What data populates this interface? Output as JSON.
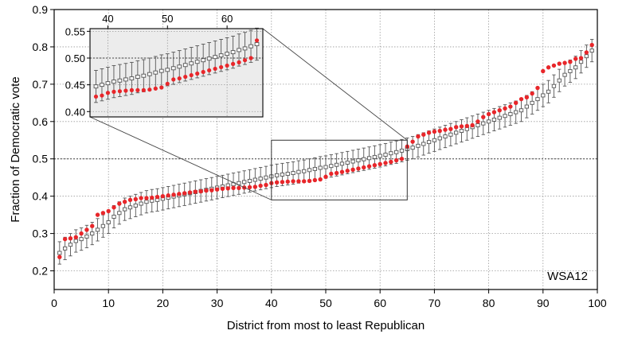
{
  "chart_data": {
    "type": "scatter",
    "xlabel": "District from most to least Republican",
    "ylabel": "Fraction of Democratic vote",
    "xlim": [
      0,
      100
    ],
    "ylim": [
      0.15,
      0.9
    ],
    "xticks": [
      0,
      10,
      20,
      30,
      40,
      50,
      60,
      70,
      80,
      90,
      100
    ],
    "yticks": [
      0.2,
      0.3,
      0.4,
      0.5,
      0.6,
      0.7,
      0.8,
      0.9
    ],
    "reference_line": 0.5,
    "grid": true,
    "annotation": "WSA12",
    "colors": {
      "points": "#e8262a",
      "boxes": "#555555",
      "inset_background": "#ececec"
    },
    "zoom_box": {
      "x": [
        40,
        65
      ],
      "y": [
        0.39,
        0.55
      ]
    },
    "inset": {
      "xlim": [
        37,
        66
      ],
      "ylim": [
        0.39,
        0.555
      ],
      "xticks": [
        40,
        50,
        60
      ],
      "yticks": [
        0.4,
        0.45,
        0.5,
        0.55
      ],
      "ytick_labels": [
        "0.40",
        "0.45",
        "0.50",
        "0.55"
      ]
    },
    "x": [
      1,
      2,
      3,
      4,
      5,
      6,
      7,
      8,
      9,
      10,
      11,
      12,
      13,
      14,
      15,
      16,
      17,
      18,
      19,
      20,
      21,
      22,
      23,
      24,
      25,
      26,
      27,
      28,
      29,
      30,
      31,
      32,
      33,
      34,
      35,
      36,
      37,
      38,
      39,
      40,
      41,
      42,
      43,
      44,
      45,
      46,
      47,
      48,
      49,
      50,
      51,
      52,
      53,
      54,
      55,
      56,
      57,
      58,
      59,
      60,
      61,
      62,
      63,
      64,
      65,
      66,
      67,
      68,
      69,
      70,
      71,
      72,
      73,
      74,
      75,
      76,
      77,
      78,
      79,
      80,
      81,
      82,
      83,
      84,
      85,
      86,
      87,
      88,
      89,
      90,
      91,
      92,
      93,
      94,
      95,
      96,
      97,
      98,
      99
    ],
    "series": [
      {
        "type": "observed",
        "values": [
          0.237,
          0.285,
          0.287,
          0.29,
          0.3,
          0.31,
          0.32,
          0.35,
          0.355,
          0.36,
          0.37,
          0.38,
          0.385,
          0.39,
          0.392,
          0.395,
          0.395,
          0.396,
          0.398,
          0.4,
          0.402,
          0.404,
          0.406,
          0.408,
          0.41,
          0.412,
          0.413,
          0.415,
          0.416,
          0.418,
          0.42,
          0.421,
          0.422,
          0.422,
          0.423,
          0.424,
          0.425,
          0.428,
          0.43,
          0.435,
          0.437,
          0.438,
          0.439,
          0.44,
          0.44,
          0.44,
          0.441,
          0.443,
          0.445,
          0.452,
          0.46,
          0.462,
          0.465,
          0.468,
          0.471,
          0.474,
          0.477,
          0.48,
          0.483,
          0.486,
          0.489,
          0.492,
          0.496,
          0.5,
          0.533,
          0.546,
          0.56,
          0.565,
          0.57,
          0.573,
          0.575,
          0.578,
          0.58,
          0.585,
          0.587,
          0.588,
          0.59,
          0.6,
          0.612,
          0.62,
          0.625,
          0.63,
          0.635,
          0.64,
          0.65,
          0.66,
          0.665,
          0.675,
          0.69,
          0.735,
          0.745,
          0.75,
          0.755,
          0.757,
          0.76,
          0.768,
          0.77,
          0.785,
          0.805
        ]
      },
      {
        "type": "ensemble-median",
        "values": [
          0.248,
          0.26,
          0.27,
          0.28,
          0.285,
          0.292,
          0.3,
          0.31,
          0.32,
          0.33,
          0.345,
          0.355,
          0.365,
          0.37,
          0.375,
          0.38,
          0.385,
          0.388,
          0.39,
          0.393,
          0.396,
          0.399,
          0.402,
          0.405,
          0.408,
          0.411,
          0.414,
          0.417,
          0.42,
          0.423,
          0.426,
          0.429,
          0.432,
          0.435,
          0.438,
          0.441,
          0.444,
          0.447,
          0.45,
          0.453,
          0.456,
          0.458,
          0.46,
          0.462,
          0.465,
          0.467,
          0.47,
          0.473,
          0.476,
          0.478,
          0.481,
          0.484,
          0.487,
          0.49,
          0.493,
          0.496,
          0.499,
          0.502,
          0.505,
          0.508,
          0.511,
          0.515,
          0.518,
          0.522,
          0.526,
          0.53,
          0.535,
          0.54,
          0.545,
          0.55,
          0.555,
          0.56,
          0.565,
          0.57,
          0.575,
          0.58,
          0.585,
          0.59,
          0.595,
          0.6,
          0.605,
          0.61,
          0.615,
          0.62,
          0.625,
          0.63,
          0.64,
          0.65,
          0.66,
          0.67,
          0.68,
          0.695,
          0.71,
          0.725,
          0.735,
          0.745,
          0.76,
          0.775,
          0.79
        ],
        "spread": 0.03
      }
    ]
  }
}
